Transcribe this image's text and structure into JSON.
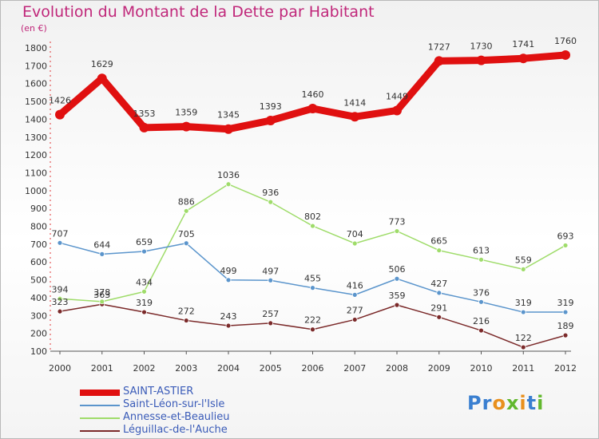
{
  "title": "Evolution du Montant de la Dette par Habitant",
  "unit_label": "(en €)",
  "logo": {
    "letters": [
      "P",
      "r",
      "o",
      "x",
      "i",
      "t",
      "i"
    ],
    "colors": [
      "#3a7fd0",
      "#3a7fd0",
      "#e8901e",
      "#62b82e",
      "#e8901e",
      "#3a7fd0",
      "#62b82e"
    ]
  },
  "chart_data": {
    "type": "line",
    "title": "Evolution du Montant de la Dette par Habitant",
    "ylabel": "(en €)",
    "x": [
      "2000",
      "2001",
      "2002",
      "2003",
      "2004",
      "2005",
      "2006",
      "2007",
      "2008",
      "2009",
      "2010",
      "2011",
      "2012"
    ],
    "yticks": [
      100,
      200,
      300,
      400,
      500,
      600,
      700,
      800,
      900,
      1000,
      1100,
      1200,
      1300,
      1400,
      1500,
      1600,
      1700,
      1800
    ],
    "ylim": [
      100,
      1800
    ],
    "grid": false,
    "legend_position": "bottom-left",
    "series": [
      {
        "name": "SAINT-ASTIER",
        "color": "#e01010",
        "values": [
          1426,
          1629,
          1353,
          1359,
          1345,
          1393,
          1460,
          1414,
          1449,
          1727,
          1730,
          1741,
          1760
        ]
      },
      {
        "name": "Saint-Léon-sur-l'Isle",
        "color": "#5b95cc",
        "values": [
          707,
          644,
          659,
          705,
          499,
          497,
          455,
          416,
          506,
          427,
          376,
          319,
          319
        ]
      },
      {
        "name": "Annesse-et-Beaulieu",
        "color": "#9fdc6a",
        "values": [
          394,
          378,
          434,
          886,
          1036,
          936,
          802,
          704,
          773,
          665,
          613,
          559,
          693
        ]
      },
      {
        "name": "Léguillac-de-l'Auche",
        "color": "#7b2a2a",
        "values": [
          323,
          363,
          319,
          272,
          243,
          257,
          222,
          277,
          359,
          291,
          216,
          122,
          189
        ]
      }
    ]
  }
}
